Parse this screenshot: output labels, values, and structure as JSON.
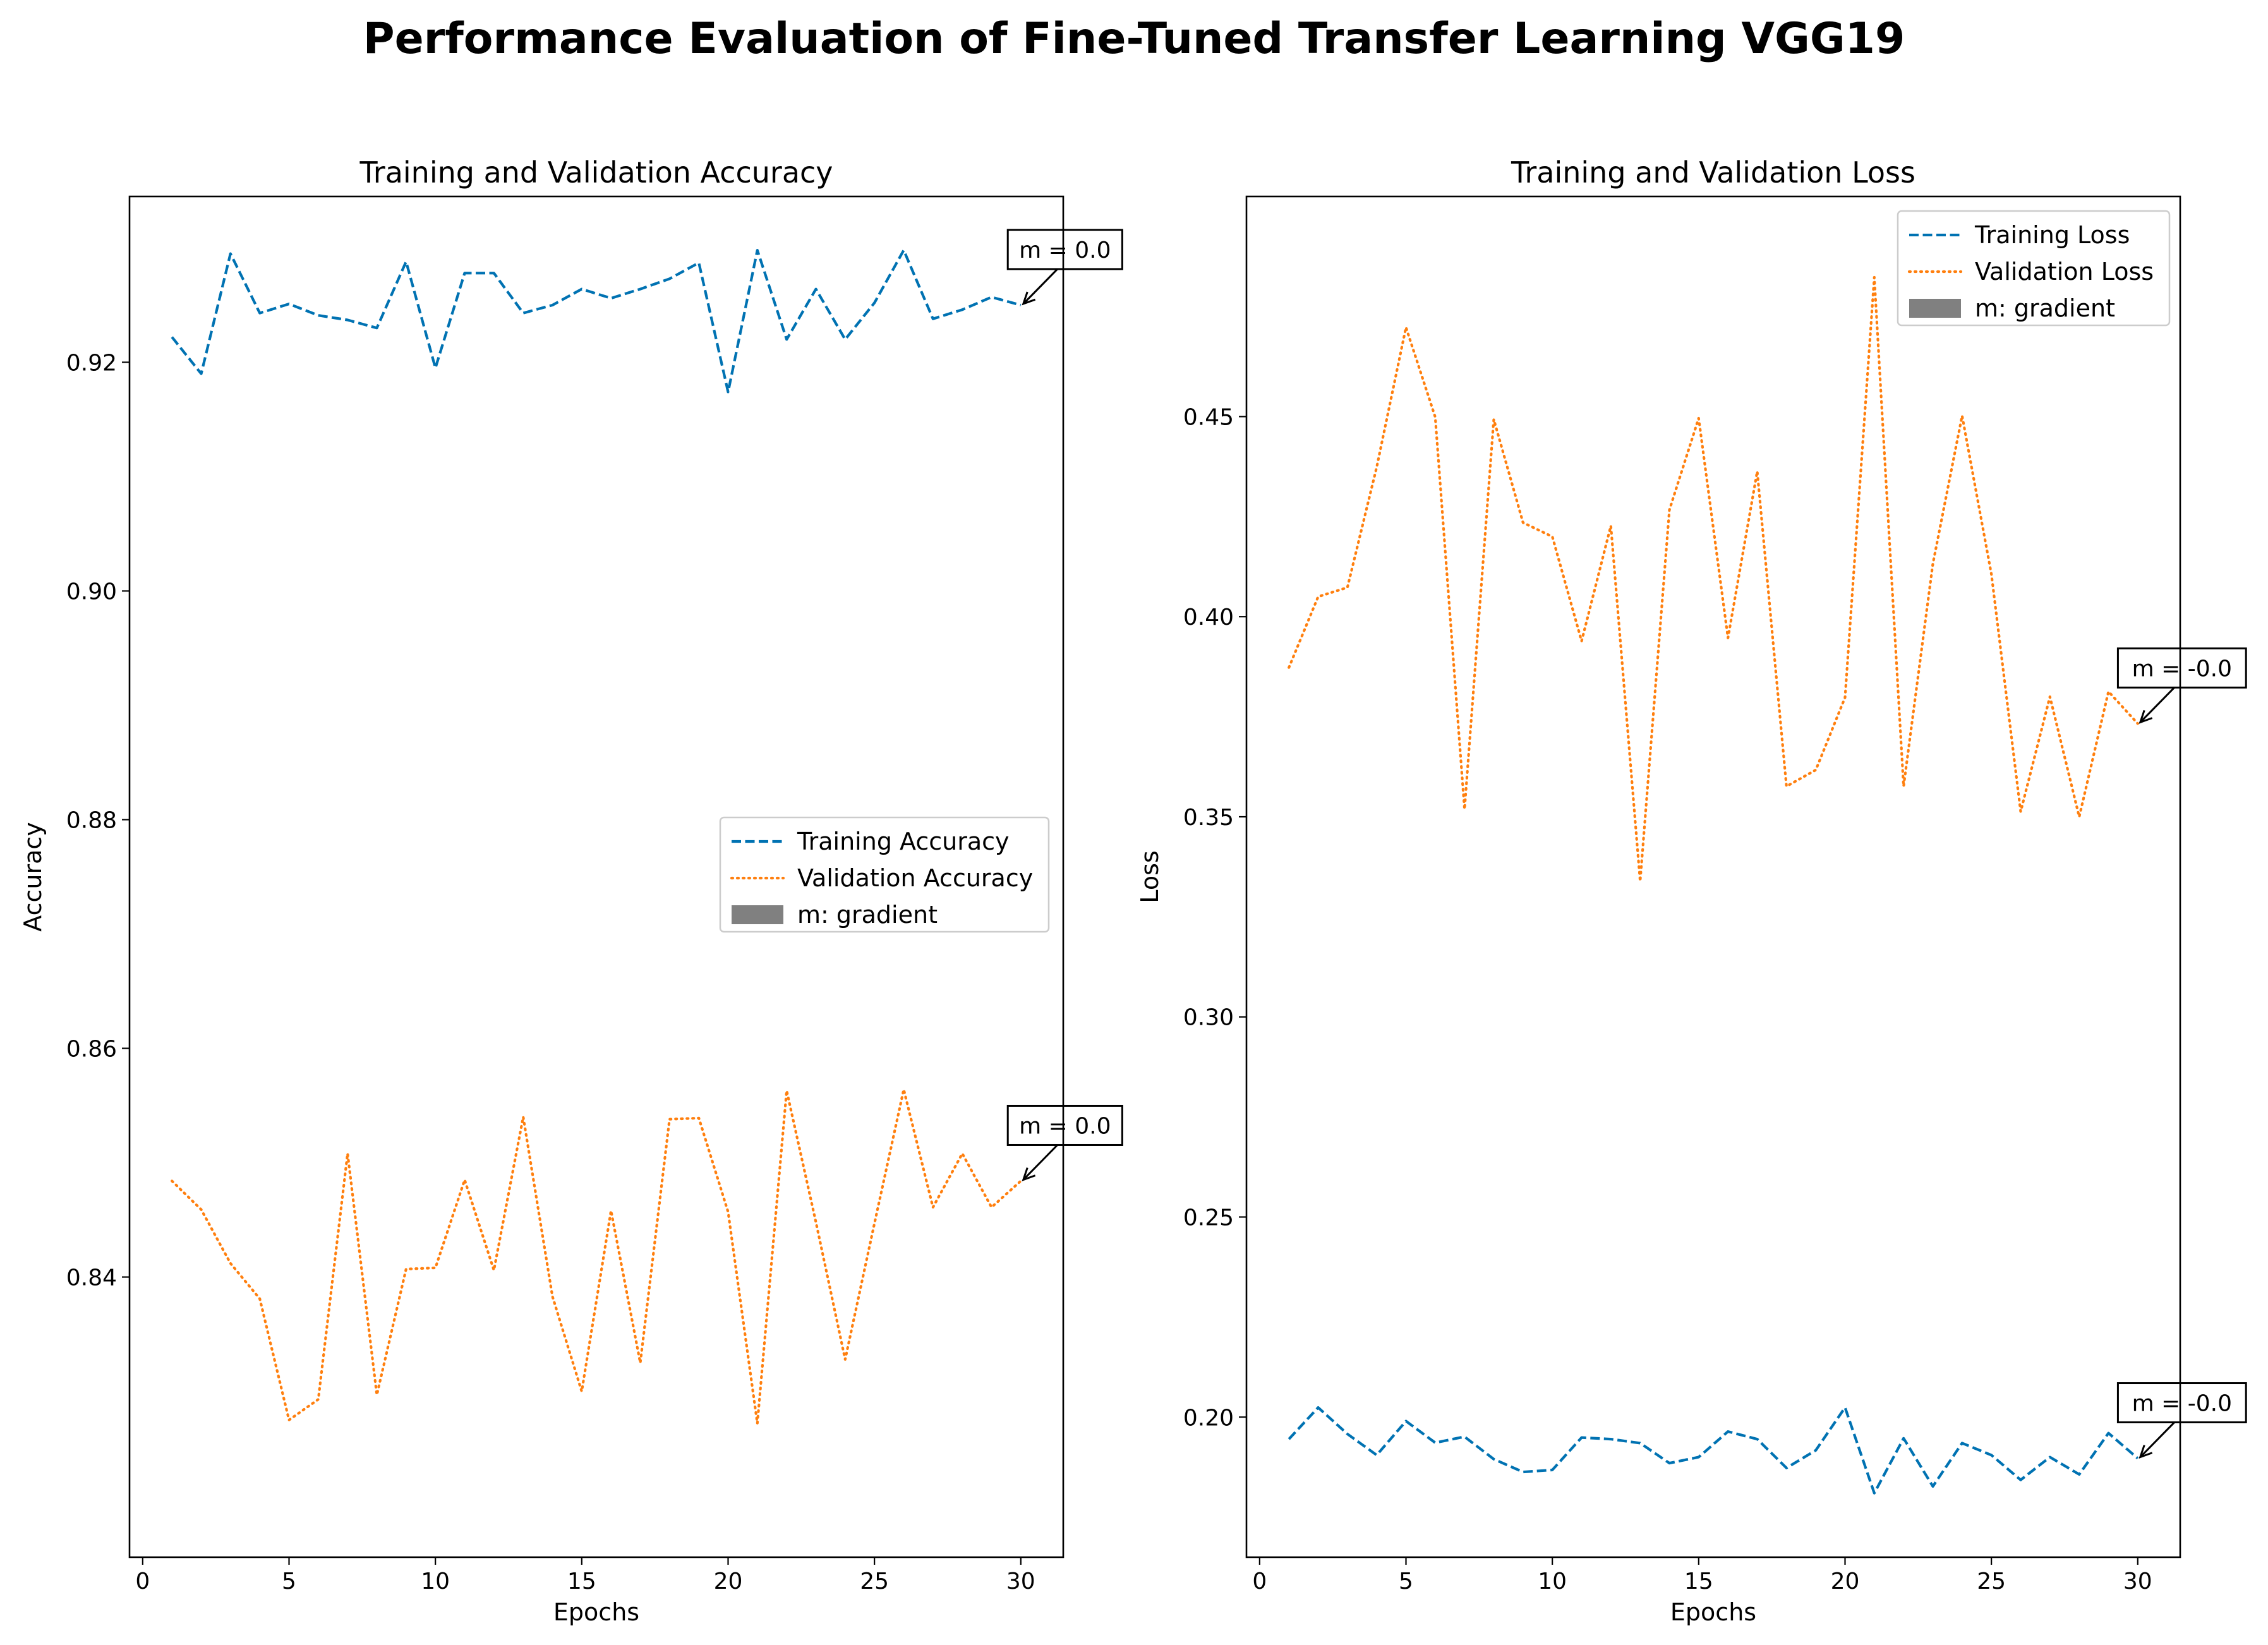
{
  "suptitle": "Performance Evaluation of Fine-Tuned Transfer Learning VGG19",
  "colors": {
    "training": "#0072B2",
    "validation": "#FF7F0E",
    "gradient_patch": "#808080"
  },
  "chart_data": [
    {
      "type": "line",
      "title": "Training and Validation Accuracy",
      "xlabel": "Epochs",
      "ylabel": "Accuracy",
      "xlim": [
        -0.45,
        31.45
      ],
      "ylim": [
        0.8155,
        0.9345
      ],
      "xticks": [
        0,
        5,
        10,
        15,
        20,
        25,
        30
      ],
      "xtick_labels": [
        "0",
        "5",
        "10",
        "15",
        "20",
        "25",
        "30"
      ],
      "yticks": [
        0.84,
        0.86,
        0.88,
        0.9,
        0.92
      ],
      "ytick_labels": [
        "0.84",
        "0.86",
        "0.88",
        "0.90",
        "0.92"
      ],
      "legend_location": "center-right",
      "legend_patch_label": "m: gradient",
      "x": [
        1,
        2,
        3,
        4,
        5,
        6,
        7,
        8,
        9,
        10,
        11,
        12,
        13,
        14,
        15,
        16,
        17,
        18,
        19,
        20,
        21,
        22,
        23,
        24,
        25,
        26,
        27,
        28,
        29,
        30
      ],
      "series": [
        {
          "name": "Training Accuracy",
          "style": "dashed",
          "color": "#0072B2",
          "values": [
            0.9222,
            0.919,
            0.9295,
            0.9243,
            0.9251,
            0.9241,
            0.9237,
            0.923,
            0.9288,
            0.9195,
            0.9278,
            0.9278,
            0.9243,
            0.925,
            0.9264,
            0.9256,
            0.9264,
            0.9273,
            0.9287,
            0.9174,
            0.9298,
            0.922,
            0.9264,
            0.922,
            0.9252,
            0.9298,
            0.9238,
            0.9246,
            0.9257,
            0.925
          ],
          "annotation": "m = 0.0"
        },
        {
          "name": "Validation Accuracy",
          "style": "dotted",
          "color": "#FF7F0E",
          "values": [
            0.8484,
            0.8459,
            0.8412,
            0.8381,
            0.8275,
            0.8293,
            0.8508,
            0.8297,
            0.8407,
            0.8408,
            0.8485,
            0.8406,
            0.854,
            0.8383,
            0.83,
            0.8458,
            0.8325,
            0.8538,
            0.8539,
            0.8457,
            0.8272,
            0.8563,
            0.8448,
            0.8328,
            0.8447,
            0.8564,
            0.8461,
            0.8508,
            0.8461,
            0.8484
          ],
          "annotation": "m = 0.0"
        }
      ]
    },
    {
      "type": "line",
      "title": "Training and Validation Loss",
      "xlabel": "Epochs",
      "ylabel": "Loss",
      "xlim": [
        -0.45,
        31.45
      ],
      "ylim": [
        0.165,
        0.505
      ],
      "xticks": [
        0,
        5,
        10,
        15,
        20,
        25,
        30
      ],
      "xtick_labels": [
        "0",
        "5",
        "10",
        "15",
        "20",
        "25",
        "30"
      ],
      "yticks": [
        0.2,
        0.25,
        0.3,
        0.35,
        0.4,
        0.45
      ],
      "ytick_labels": [
        "0.20",
        "0.25",
        "0.30",
        "0.35",
        "0.40",
        "0.45"
      ],
      "legend_location": "upper-right",
      "legend_patch_label": "m: gradient",
      "x": [
        1,
        2,
        3,
        4,
        5,
        6,
        7,
        8,
        9,
        10,
        11,
        12,
        13,
        14,
        15,
        16,
        17,
        18,
        19,
        20,
        21,
        22,
        23,
        24,
        25,
        26,
        27,
        28,
        29,
        30
      ],
      "series": [
        {
          "name": "Training Loss",
          "style": "dashed",
          "color": "#0072B2",
          "values": [
            0.1945,
            0.2024,
            0.1958,
            0.1905,
            0.199,
            0.1936,
            0.1951,
            0.1895,
            0.1863,
            0.1868,
            0.1949,
            0.1945,
            0.1935,
            0.1885,
            0.19,
            0.1964,
            0.1945,
            0.1873,
            0.1917,
            0.2024,
            0.181,
            0.1947,
            0.1827,
            0.1935,
            0.1905,
            0.1843,
            0.19,
            0.1857,
            0.196,
            0.1897
          ],
          "annotation": "m = -0.0"
        },
        {
          "name": "Validation Loss",
          "style": "dotted",
          "color": "#FF7F0E",
          "values": [
            0.3873,
            0.405,
            0.4073,
            0.4374,
            0.4723,
            0.4499,
            0.3519,
            0.4493,
            0.4235,
            0.42,
            0.3939,
            0.4227,
            0.3339,
            0.4267,
            0.4496,
            0.3947,
            0.4363,
            0.3576,
            0.3617,
            0.3798,
            0.4848,
            0.3576,
            0.4132,
            0.4502,
            0.4106,
            0.3513,
            0.38,
            0.35,
            0.3813,
            0.3733
          ],
          "annotation": "m = -0.0"
        }
      ]
    }
  ]
}
